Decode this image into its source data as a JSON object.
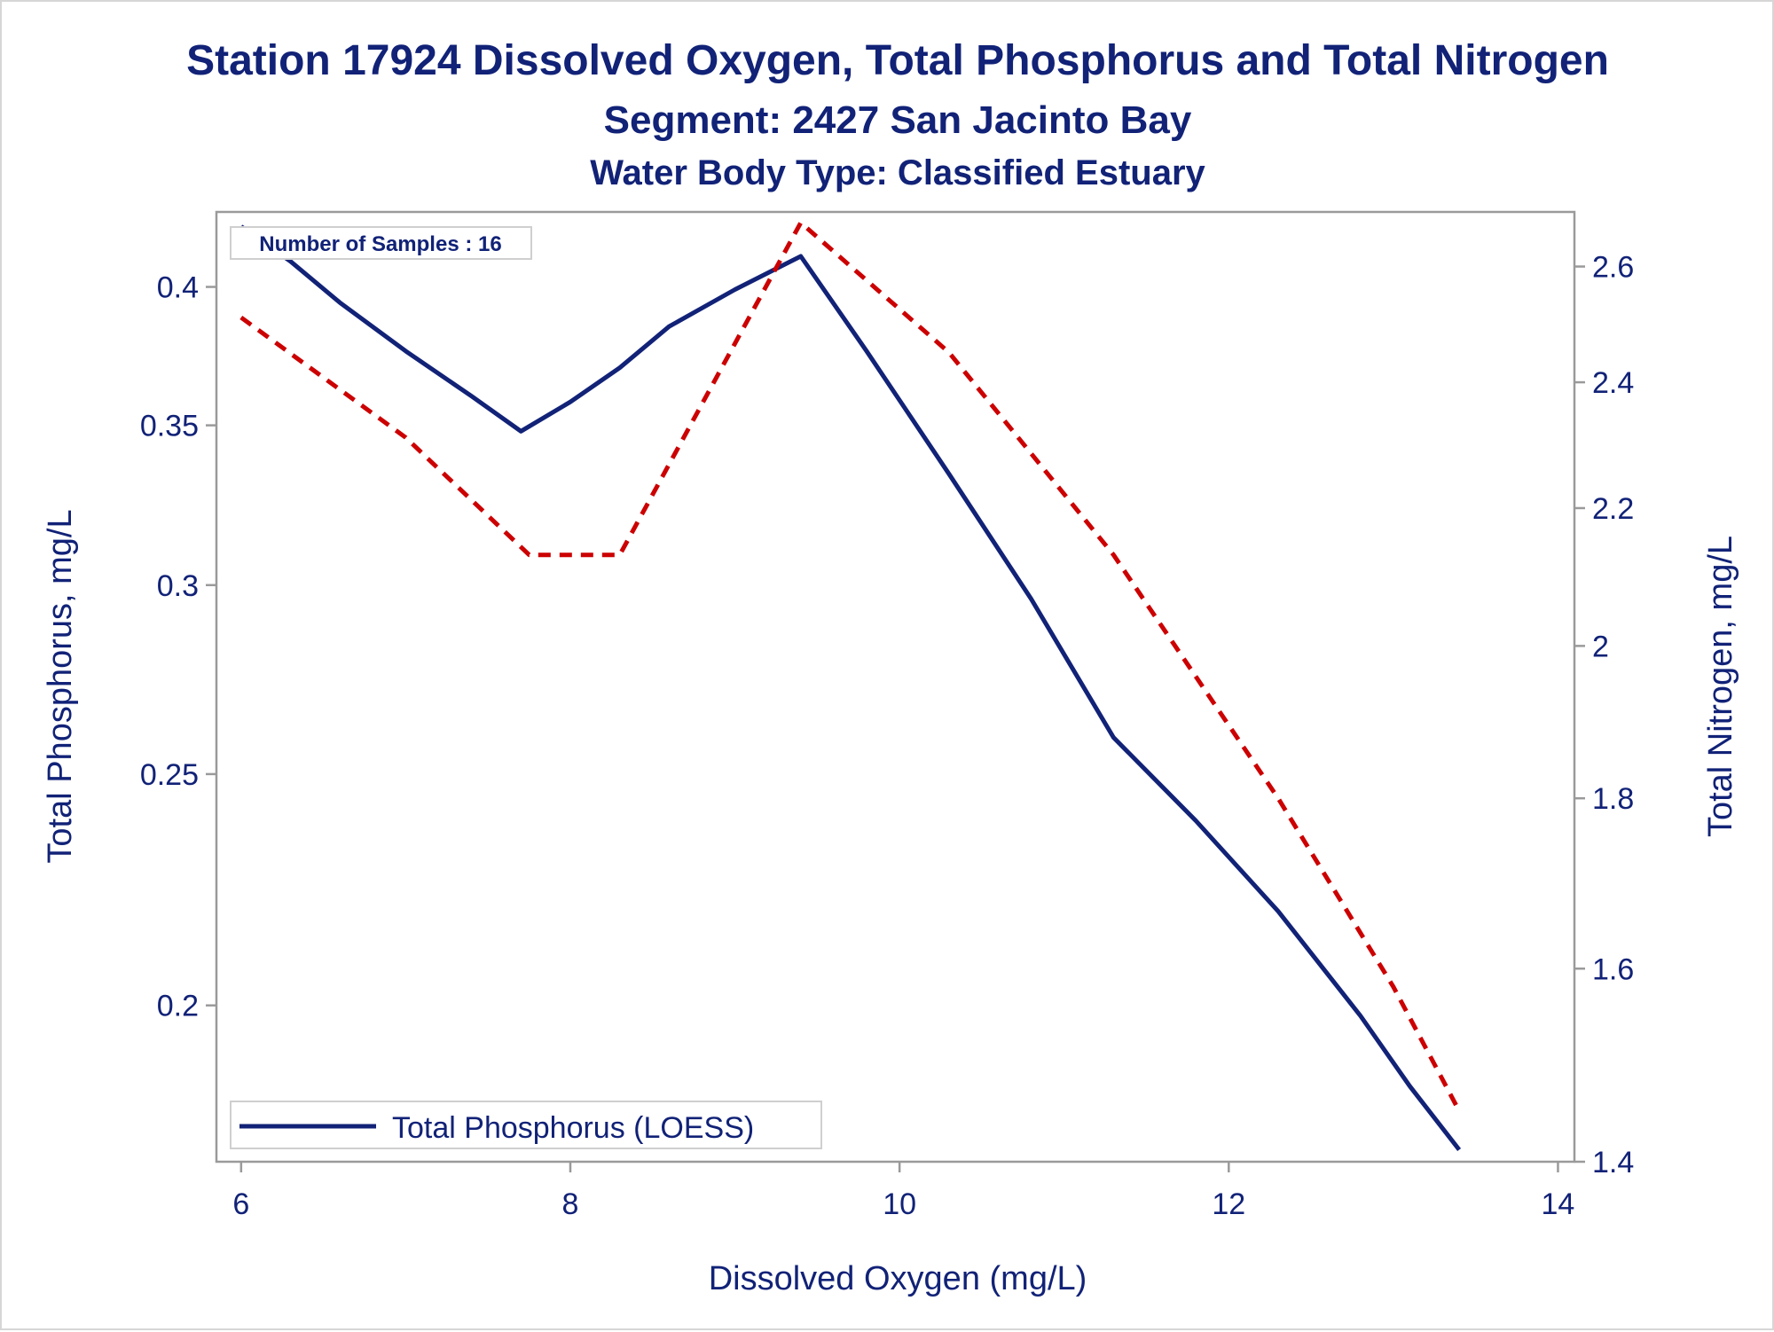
{
  "chart_data": {
    "type": "line",
    "title": "Station 17924  Dissolved Oxygen, Total Phosphorus and Total Nitrogen",
    "subtitle": "Segment: 2427  San Jacinto Bay",
    "subtitle2": "Water Body Type: Classified Estuary",
    "xlabel": "Dissolved Oxygen (mg/L)",
    "ylabel": "Total Phosphorus, mg/L",
    "y2label": "Total Nitrogen, mg/L",
    "xlim": [
      5.85,
      14.1
    ],
    "ylim": [
      0.172,
      0.43
    ],
    "y2lim": [
      1.4,
      2.7
    ],
    "y_scale": "log",
    "y2_scale": "log",
    "xticks": [
      "6",
      "8",
      "10",
      "12",
      "14"
    ],
    "xtick_values": [
      6,
      8,
      10,
      12,
      14
    ],
    "yticks": [
      "0.2",
      "0.25",
      "0.3",
      "0.35",
      "0.4"
    ],
    "ytick_values": [
      0.2,
      0.25,
      0.3,
      0.35,
      0.4
    ],
    "y2ticks": [
      "1.4",
      "1.6",
      "1.8",
      "2",
      "2.2",
      "2.4",
      "2.6"
    ],
    "y2tick_values": [
      1.4,
      1.6,
      1.8,
      2.0,
      2.2,
      2.4,
      2.6
    ],
    "inset_label": "Number of Samples : 16",
    "legend_position": "bottom-left",
    "series": [
      {
        "name": "Total Phosphorus (LOESS)",
        "axis": "left",
        "color": "#112277",
        "style": "solid",
        "x": [
          6.0,
          6.3,
          6.6,
          7.0,
          7.4,
          7.7,
          8.0,
          8.3,
          8.6,
          9.0,
          9.4,
          9.8,
          10.3,
          10.8,
          11.3,
          11.8,
          12.3,
          12.8,
          13.1,
          13.4
        ],
        "y": [
          0.424,
          0.41,
          0.394,
          0.376,
          0.36,
          0.348,
          0.358,
          0.37,
          0.385,
          0.399,
          0.412,
          0.376,
          0.334,
          0.296,
          0.259,
          0.239,
          0.219,
          0.198,
          0.185,
          0.174
        ]
      },
      {
        "name": "",
        "axis": "right",
        "color": "#cc0000",
        "style": "dashed",
        "x": [
          6.0,
          7.0,
          7.75,
          8.3,
          9.4,
          10.3,
          11.3,
          12.3,
          13.0,
          13.4
        ],
        "y": [
          2.51,
          2.31,
          2.13,
          2.13,
          2.68,
          2.45,
          2.13,
          1.8,
          1.58,
          1.45
        ]
      }
    ]
  }
}
